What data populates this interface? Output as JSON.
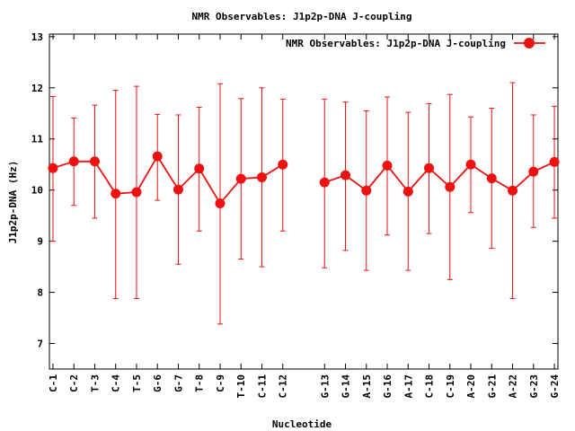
{
  "chart_data": {
    "type": "line",
    "title": "NMR Observables: J1p2p-DNA J-coupling",
    "xlabel": "Nucleotide",
    "ylabel": "J1p2p-DNA (Hz)",
    "ylim": [
      6.5,
      13.05
    ],
    "yticks": [
      7,
      8,
      9,
      10,
      11,
      12,
      13
    ],
    "grid": false,
    "legend_position": "top-right",
    "color": "#ee1111",
    "categories": [
      "C-1",
      "C-2",
      "T-3",
      "C-4",
      "T-5",
      "G-6",
      "G-7",
      "T-8",
      "C-9",
      "T-10",
      "C-11",
      "C-12",
      "G-13",
      "G-14",
      "A-15",
      "G-16",
      "A-17",
      "C-18",
      "C-19",
      "A-20",
      "G-21",
      "A-22",
      "G-23",
      "G-24"
    ],
    "x": [
      1,
      2,
      3,
      4,
      5,
      6,
      7,
      8,
      9,
      10,
      11,
      12,
      14,
      15,
      16,
      17,
      18,
      19,
      20,
      21,
      22,
      23,
      24,
      25
    ],
    "series": [
      {
        "name": "NMR Observables: J1p2p-DNA J-coupling",
        "values": [
          10.43,
          10.56,
          10.56,
          9.93,
          9.96,
          10.66,
          10.01,
          10.42,
          9.74,
          10.22,
          10.25,
          10.5,
          10.15,
          10.29,
          9.99,
          10.48,
          9.97,
          10.43,
          10.06,
          10.5,
          10.23,
          9.99,
          10.36,
          10.55
        ],
        "err_low": [
          9.0,
          9.7,
          9.45,
          7.88,
          7.88,
          9.8,
          8.55,
          9.2,
          7.38,
          8.65,
          8.5,
          9.2,
          8.48,
          8.82,
          8.43,
          9.12,
          8.43,
          9.15,
          8.25,
          9.56,
          8.86,
          7.88,
          9.27,
          9.45
        ],
        "err_high": [
          11.83,
          11.41,
          11.66,
          11.95,
          12.03,
          11.48,
          11.47,
          11.62,
          12.08,
          11.79,
          12.0,
          11.78,
          11.78,
          11.72,
          11.55,
          11.82,
          11.52,
          11.69,
          11.87,
          11.43,
          11.6,
          12.1,
          11.47,
          11.64
        ]
      }
    ]
  }
}
